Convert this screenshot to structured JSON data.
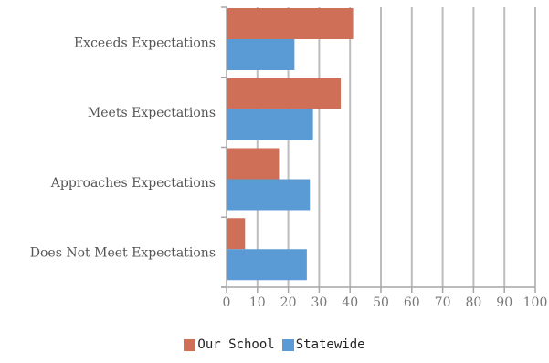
{
  "chart_data": {
    "type": "bar",
    "orientation": "horizontal",
    "categories": [
      "Exceeds Expectations",
      "Meets Expectations",
      "Approaches Expectations",
      "Does Not Meet Expectations"
    ],
    "series": [
      {
        "name": "Our School",
        "values": [
          41,
          37,
          17,
          6
        ],
        "color": "#d06f57"
      },
      {
        "name": "Statewide",
        "values": [
          22,
          28,
          27,
          26
        ],
        "color": "#5b9bd5"
      }
    ],
    "xlim": [
      0,
      100
    ],
    "xticks": [
      0,
      10,
      20,
      30,
      40,
      50,
      60,
      70,
      80,
      90,
      100
    ],
    "grid": "vertical",
    "legend": "bottom"
  }
}
